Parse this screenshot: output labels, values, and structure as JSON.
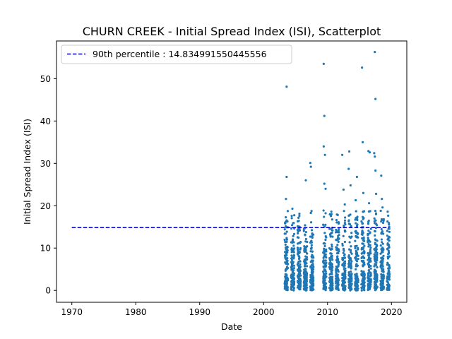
{
  "chart_data": {
    "type": "scatter",
    "title": "CHURN CREEK - Initial Spread Index (ISI), Scatterplot",
    "xlabel": "Date",
    "ylabel": "Initial Spread Index (ISI)",
    "xlim": [
      1967.6,
      2022.4
    ],
    "ylim": [
      -2.8,
      58.9
    ],
    "x_ticks": [
      "1970",
      "1980",
      "1990",
      "2000",
      "2010",
      "2020"
    ],
    "y_ticks": [
      "0",
      "10",
      "20",
      "30",
      "40",
      "50"
    ],
    "grid": false,
    "legend_position": "top-left",
    "series_color": "#1f77b4",
    "reference_line": {
      "label": "90th percentile : 14.834991550445556",
      "value": 14.834991550445556,
      "x_range": [
        1970,
        2019.6
      ],
      "color": "#0000cc",
      "style": "dashed"
    },
    "season_ranges": [
      [
        2003.3,
        2003.8
      ],
      [
        2004.3,
        2004.8
      ],
      [
        2005.3,
        2005.8
      ],
      [
        2006.3,
        2006.8
      ],
      [
        2007.3,
        2007.8
      ],
      [
        2009.3,
        2009.8
      ],
      [
        2010.3,
        2010.8
      ],
      [
        2011.3,
        2011.8
      ],
      [
        2012.3,
        2012.8
      ],
      [
        2013.3,
        2013.8
      ],
      [
        2014.3,
        2014.8
      ],
      [
        2015.3,
        2015.8
      ],
      [
        2016.3,
        2016.8
      ],
      [
        2017.3,
        2017.8
      ],
      [
        2018.3,
        2018.8
      ],
      [
        2019.3,
        2019.7
      ]
    ],
    "notable_points": [
      {
        "x": 2003.6,
        "y": 48.1
      },
      {
        "x": 2003.6,
        "y": 26.8
      },
      {
        "x": 2003.5,
        "y": 21.6
      },
      {
        "x": 2004.5,
        "y": 19.3
      },
      {
        "x": 2006.6,
        "y": 26.0
      },
      {
        "x": 2007.3,
        "y": 30.1
      },
      {
        "x": 2007.4,
        "y": 29.2
      },
      {
        "x": 2009.4,
        "y": 53.5
      },
      {
        "x": 2009.5,
        "y": 41.2
      },
      {
        "x": 2009.4,
        "y": 34.0
      },
      {
        "x": 2009.6,
        "y": 32.0
      },
      {
        "x": 2009.5,
        "y": 25.2
      },
      {
        "x": 2009.7,
        "y": 24.0
      },
      {
        "x": 2012.3,
        "y": 32.0
      },
      {
        "x": 2012.5,
        "y": 23.8
      },
      {
        "x": 2013.4,
        "y": 32.8
      },
      {
        "x": 2013.3,
        "y": 28.7
      },
      {
        "x": 2013.6,
        "y": 24.8
      },
      {
        "x": 2014.6,
        "y": 26.8
      },
      {
        "x": 2015.4,
        "y": 52.6
      },
      {
        "x": 2015.5,
        "y": 35.0
      },
      {
        "x": 2015.6,
        "y": 23.0
      },
      {
        "x": 2016.4,
        "y": 32.9
      },
      {
        "x": 2016.6,
        "y": 32.6
      },
      {
        "x": 2017.4,
        "y": 56.3
      },
      {
        "x": 2017.5,
        "y": 45.2
      },
      {
        "x": 2017.3,
        "y": 32.4
      },
      {
        "x": 2017.4,
        "y": 31.6
      },
      {
        "x": 2017.5,
        "y": 28.3
      },
      {
        "x": 2017.6,
        "y": 22.8
      },
      {
        "x": 2018.4,
        "y": 27.1
      },
      {
        "x": 2018.5,
        "y": 21.6
      },
      {
        "x": 2018.6,
        "y": 19.6
      },
      {
        "x": 2011.4,
        "y": 16.6
      },
      {
        "x": 2012.7,
        "y": 20.3
      },
      {
        "x": 2014.4,
        "y": 21.3
      },
      {
        "x": 2016.5,
        "y": 20.6
      },
      {
        "x": 2010.6,
        "y": 18.6
      },
      {
        "x": 2005.6,
        "y": 18.1
      },
      {
        "x": 2004.4,
        "y": 17.6
      }
    ]
  }
}
